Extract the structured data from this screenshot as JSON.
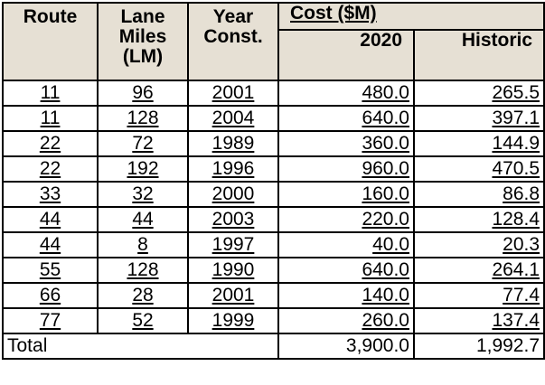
{
  "headers": {
    "route": "Route",
    "lane_miles": [
      "Lane",
      "Miles",
      "(LM)"
    ],
    "year": [
      "Year",
      "Const."
    ],
    "cost_group": "Cost ($M)",
    "cost_2020": "2020",
    "cost_historic": "Historic"
  },
  "rows": [
    {
      "route": "11",
      "lm": "96",
      "year": "2001",
      "c2020": "480.0",
      "hist": "265.5"
    },
    {
      "route": "11",
      "lm": "128",
      "year": "2004",
      "c2020": "640.0",
      "hist": "397.1"
    },
    {
      "route": "22",
      "lm": "72",
      "year": "1989",
      "c2020": "360.0",
      "hist": "144.9"
    },
    {
      "route": "22",
      "lm": "192",
      "year": "1996",
      "c2020": "960.0",
      "hist": "470.5"
    },
    {
      "route": "33",
      "lm": "32",
      "year": "2000",
      "c2020": "160.0",
      "hist": "86.8"
    },
    {
      "route": "44",
      "lm": "44",
      "year": "2003",
      "c2020": "220.0",
      "hist": "128.4"
    },
    {
      "route": "44",
      "lm": "8",
      "year": "1997",
      "c2020": "40.0",
      "hist": "20.3"
    },
    {
      "route": "55",
      "lm": "128",
      "year": "1990",
      "c2020": "640.0",
      "hist": "264.1"
    },
    {
      "route": "66",
      "lm": "28",
      "year": "2001",
      "c2020": "140.0",
      "hist": "77.4"
    },
    {
      "route": "77",
      "lm": "52",
      "year": "1999",
      "c2020": "260.0",
      "hist": "137.4"
    }
  ],
  "total": {
    "label": "Total",
    "c2020": "3,900.0",
    "hist": "1,992.7"
  }
}
